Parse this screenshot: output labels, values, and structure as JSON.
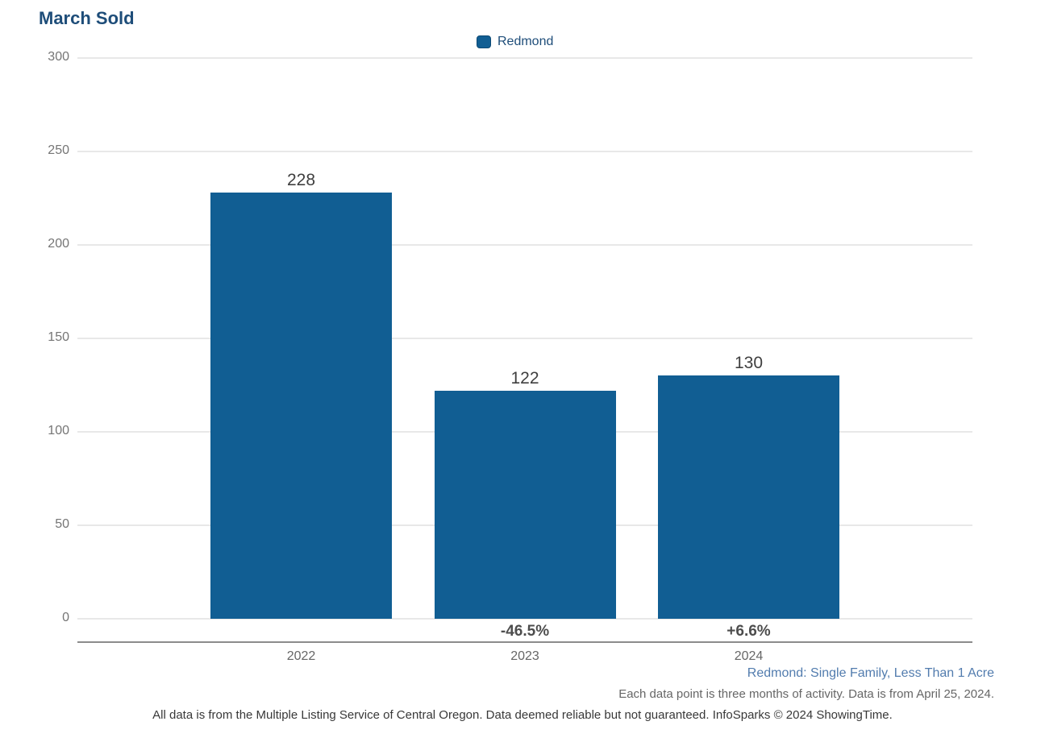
{
  "title": "March Sold",
  "legend": {
    "label": "Redmond",
    "swatch_color": "#115e93"
  },
  "chart_data": {
    "type": "bar",
    "title": "March Sold",
    "series_name": "Redmond",
    "categories": [
      "2022",
      "2023",
      "2024"
    ],
    "values": [
      228,
      122,
      130
    ],
    "value_labels": [
      "228",
      "122",
      "130"
    ],
    "pct_change_labels": [
      "",
      "-46.5%",
      "+6.6%"
    ],
    "xlabel": "",
    "ylabel": "",
    "ylim": [
      0,
      300
    ],
    "yticks": [
      0,
      50,
      100,
      150,
      200,
      250,
      300
    ],
    "grid": "horizontal",
    "legend_position": "top-center",
    "bar_color": "#115e93"
  },
  "footnotes": {
    "segment": "Redmond: Single Family, Less Than 1 Acre",
    "data_note": "Each data point is three months of activity. Data is from April 25, 2024.",
    "disclaimer": "All data is from the Multiple Listing Service of Central Oregon. Data deemed reliable but not guaranteed. InfoSparks © 2024 ShowingTime."
  },
  "colors": {
    "bar": "#115e93",
    "title": "#1e4d79",
    "legend_text": "#1e4d79",
    "segment_note": "#527cae",
    "tick_label": "#757575",
    "category_label": "#666666",
    "value_label": "#3f3f3f",
    "pct_label": "#4d4d4d",
    "gridline": "#e8e8e8",
    "axis_line": "#8c8c8c"
  }
}
